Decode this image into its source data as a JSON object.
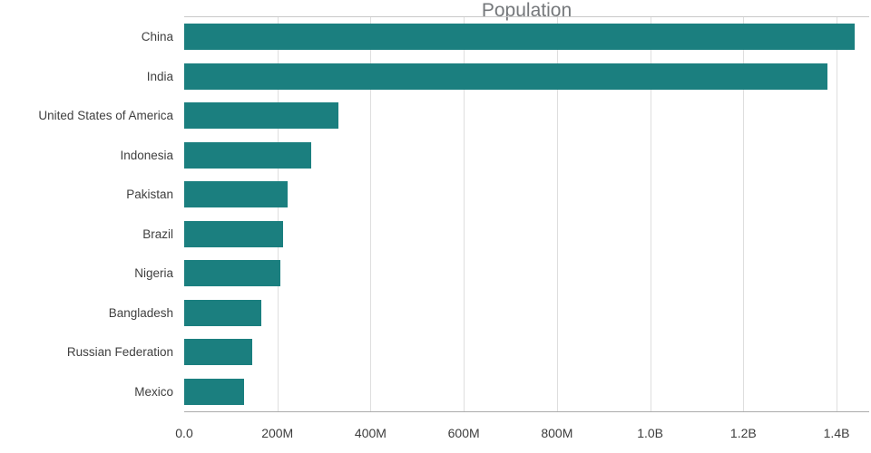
{
  "chart_data": {
    "type": "bar",
    "orientation": "horizontal",
    "title": "Population",
    "categories": [
      "China",
      "India",
      "United States of America",
      "Indonesia",
      "Pakistan",
      "Brazil",
      "Nigeria",
      "Bangladesh",
      "Russian Federation",
      "Mexico"
    ],
    "values": [
      1439000000,
      1380000000,
      331000000,
      273000000,
      221000000,
      212000000,
      206000000,
      165000000,
      146000000,
      129000000
    ],
    "xlabel": "",
    "ylabel": "",
    "xlim": [
      0,
      1470000000
    ],
    "xticks": [
      {
        "value": 0,
        "label": "0.0"
      },
      {
        "value": 200000000,
        "label": "200M"
      },
      {
        "value": 400000000,
        "label": "400M"
      },
      {
        "value": 600000000,
        "label": "600M"
      },
      {
        "value": 800000000,
        "label": "800M"
      },
      {
        "value": 1000000000,
        "label": "1.0B"
      },
      {
        "value": 1200000000,
        "label": "1.2B"
      },
      {
        "value": 1400000000,
        "label": "1.4B"
      }
    ],
    "bar_color": "#1b7f7f",
    "title_color": "#75787b",
    "grid": "vertical",
    "legend": "none"
  }
}
